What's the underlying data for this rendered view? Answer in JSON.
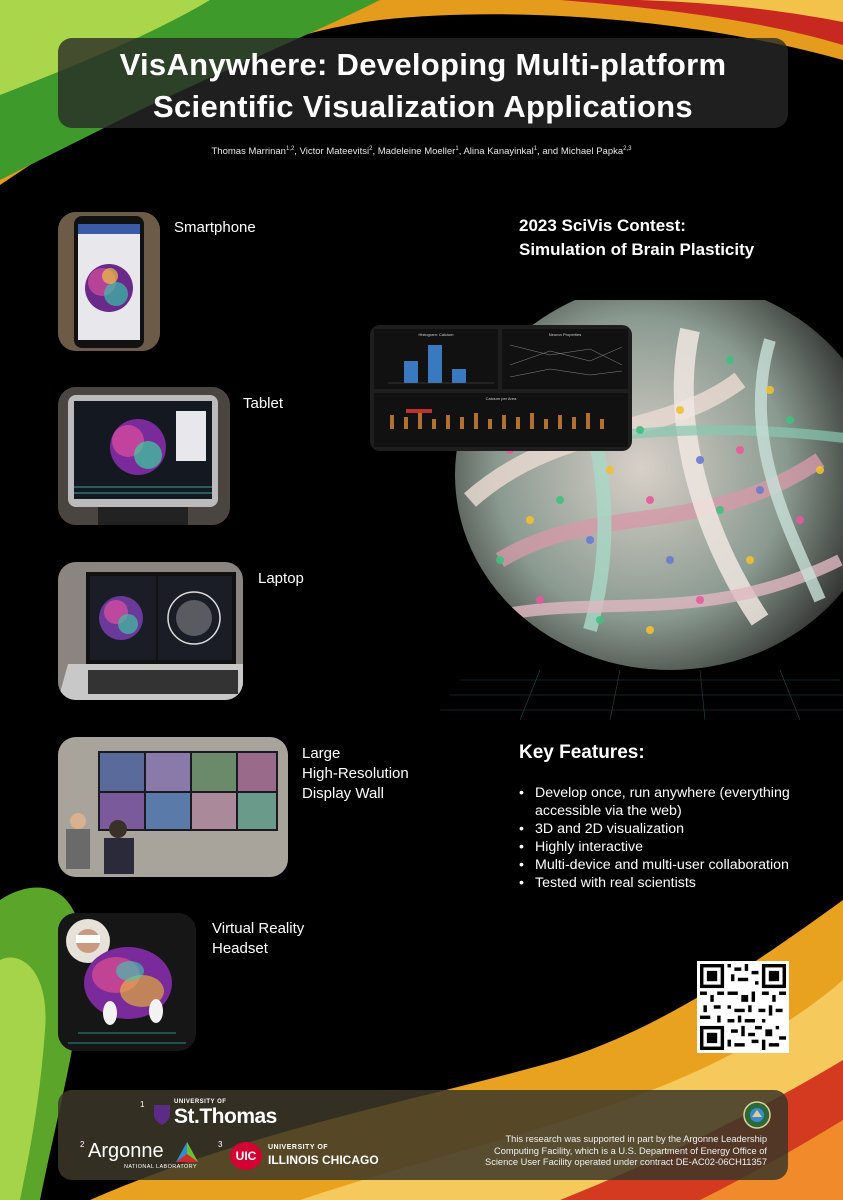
{
  "header": {
    "title_line1": "VisAnywhere: Developing Multi-platform",
    "title_line2": "Scientific Visualization Applications",
    "authors": [
      {
        "name": "Thomas Marrinan",
        "aff": "1,2"
      },
      {
        "name": "Victor Mateevitsi",
        "aff": "2"
      },
      {
        "name": "Madeleine Moeller",
        "aff": "1"
      },
      {
        "name": "Alina Kanayinkal",
        "aff": "1"
      },
      {
        "name": "Michael Papka",
        "aff": "2,3"
      }
    ],
    "sep1": ", ",
    "sep2": ", ",
    "sep3": ", ",
    "sep4": ", and "
  },
  "devices": {
    "smartphone": "Smartphone",
    "tablet": "Tablet",
    "laptop": "Laptop",
    "wall_line1": "Large",
    "wall_line2": "High-Resolution",
    "wall_line3": "Display Wall",
    "vr_line1": "Virtual Reality",
    "vr_line2": "Headset"
  },
  "contest": {
    "line1": "2023 SciVis Contest:",
    "line2": "Simulation of Brain Plasticity"
  },
  "charts": {
    "hist_title": "Histogram: Calcium",
    "pc_title": "Neuron Properties",
    "box_title": "Calcium per Area"
  },
  "key_features": {
    "title": "Key Features:",
    "items": [
      "Develop once, run anywhere (everything accessible via the web)",
      "3D and 2D visualization",
      "Highly interactive",
      "Multi-device and multi-user collaboration",
      "Tested with real scientists"
    ]
  },
  "footer": {
    "aff1_num": "1",
    "ust_small": "UNIVERSITY OF",
    "ust_big": "St.Thomas",
    "aff2_num": "2",
    "argonne": "Argonne",
    "argonne_sub": "NATIONAL LABORATORY",
    "aff3_num": "3",
    "uic_badge": "UIC",
    "uic_line1": "UNIVERSITY OF",
    "uic_line2": "ILLINOIS CHICAGO",
    "ack_line1": "This research was supported in part by the Argonne Leadership",
    "ack_line2": "Computing Facility, which is a U.S. Department of Energy Office of",
    "ack_line3": "Science User Facility operated under contract DE-AC02-06CH11357"
  },
  "colors": {
    "background": "#000000",
    "green": "#6fbf2a",
    "orange": "#f39a1e",
    "red": "#d6272d",
    "uic_red": "#d50032",
    "ust_purple": "#5b2c86"
  }
}
